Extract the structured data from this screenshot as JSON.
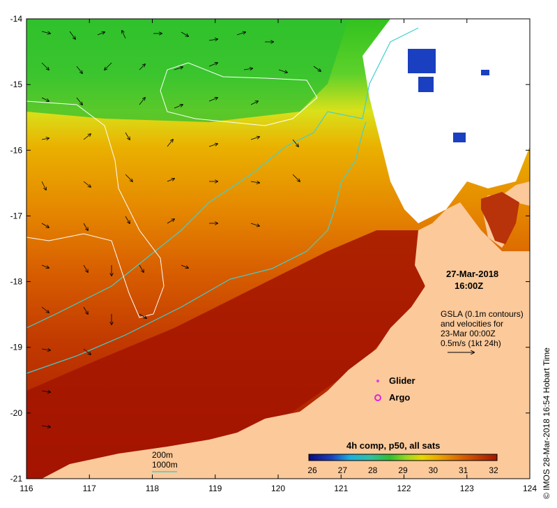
{
  "map": {
    "lon_ticks": [
      "116",
      "117",
      "118",
      "119",
      "120",
      "121",
      "122",
      "123",
      "124"
    ],
    "lat_ticks": [
      "-14",
      "-15",
      "-16",
      "-17",
      "-18",
      "-19",
      "-20",
      "-21"
    ],
    "date": "27-Mar-2018",
    "time": "16:00Z",
    "gsla_lines": [
      "GSLA (0.1m contours)",
      "and velocities for",
      "23-Mar 00:00Z",
      "0.5m/s (1kt 24h)"
    ],
    "legend_glider": "Glider",
    "legend_argo": "Argo",
    "depth_200": "200m",
    "depth_1000": "1000m",
    "colorbar_title": "4h comp, p50, all sats",
    "colorbar_ticks": [
      "26",
      "27",
      "28",
      "29",
      "30",
      "31",
      "32"
    ],
    "credit": "© IMOS 28-Mar-2018 16:54 Hobart Time",
    "colors": {
      "land": "#fbc99a",
      "warm": "#a31400",
      "mid": "#e06a00",
      "yellow": "#e8d800",
      "green": "#2fc030",
      "cool": "#1a3fc0",
      "isobath": "#40d0d0"
    }
  }
}
